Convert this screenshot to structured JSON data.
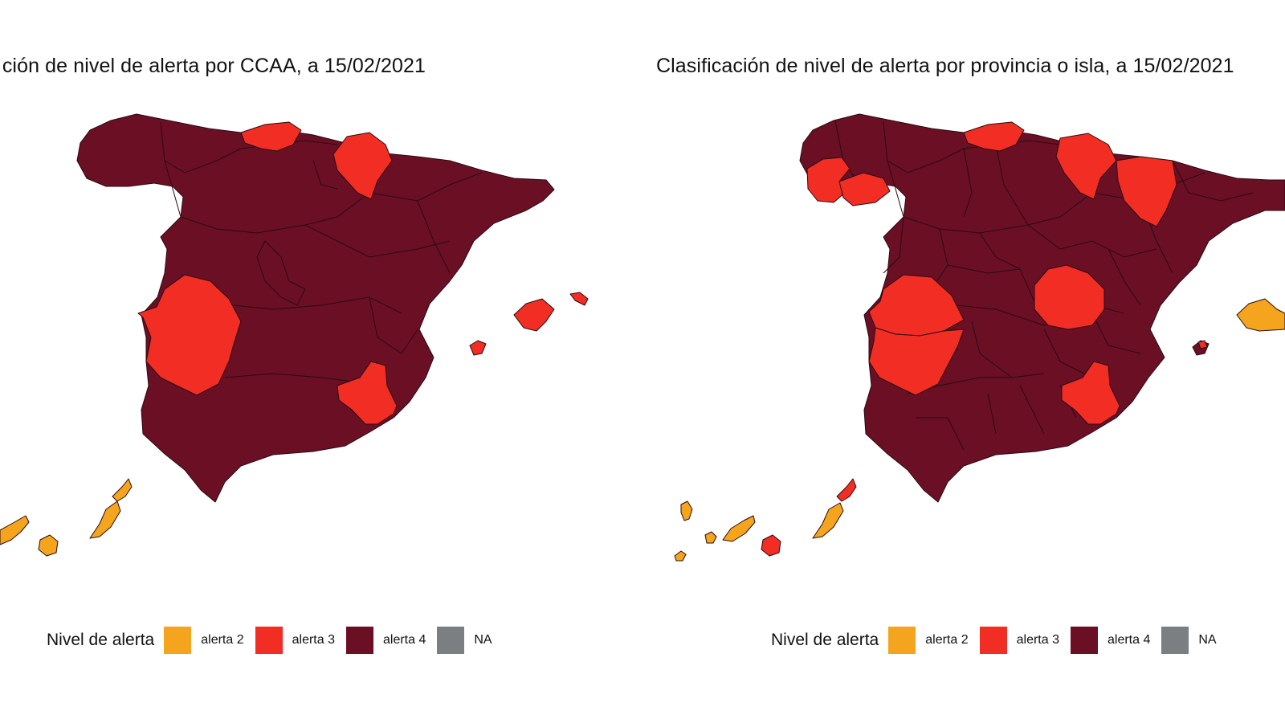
{
  "colors": {
    "alerta_2": "#f4a51d",
    "alerta_3": "#f22d24",
    "alerta_4": "#6b0f25",
    "NA": "#7b7f81",
    "border": "#2a0a12"
  },
  "maps": [
    {
      "title": "ción de nivel de alerta por CCAA, a 15/02/2021",
      "legend": {
        "title": "Nivel de alerta",
        "items": [
          {
            "label": "alerta 2",
            "level": "alerta_2"
          },
          {
            "label": "alerta 3",
            "level": "alerta_3"
          },
          {
            "label": "alerta 4",
            "level": "alerta_4"
          },
          {
            "label": "NA",
            "level": "NA"
          }
        ]
      }
    },
    {
      "title": "Clasificación de nivel de alerta por provincia o isla, a 15/02/2021",
      "legend": {
        "title": "Nivel de alerta",
        "items": [
          {
            "label": "alerta 2",
            "level": "alerta_2"
          },
          {
            "label": "alerta 3",
            "level": "alerta_3"
          },
          {
            "label": "alerta 4",
            "level": "alerta_4"
          },
          {
            "label": "NA",
            "level": "NA"
          }
        ]
      }
    }
  ]
}
